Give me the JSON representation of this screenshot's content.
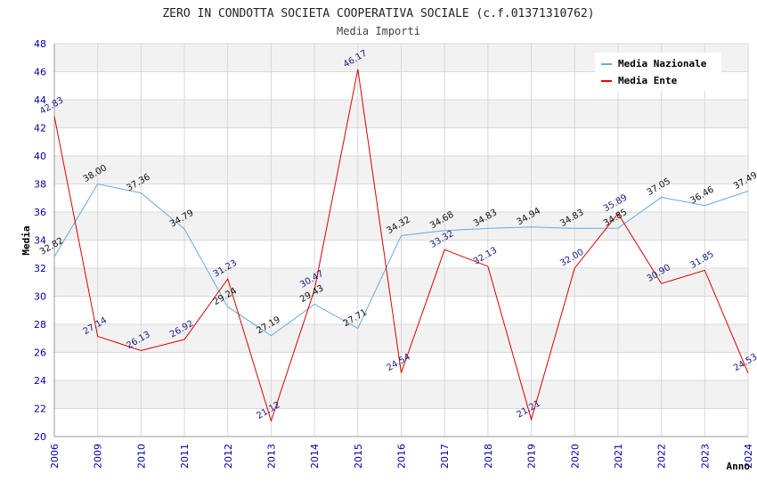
{
  "chart_data": {
    "type": "line",
    "title": "ZERO IN CONDOTTA SOCIETA COOPERATIVA SOCIALE (c.f.01371310762)",
    "subtitle": "Media Importi",
    "xlabel": "Anno",
    "ylabel": "Media",
    "ylim": [
      20,
      48
    ],
    "ytick_step": 2,
    "grid": true,
    "legend_position": "top-right",
    "categories": [
      "2006",
      "2009",
      "2010",
      "2011",
      "2012",
      "2013",
      "2014",
      "2015",
      "2016",
      "2017",
      "2018",
      "2019",
      "2020",
      "2021",
      "2022",
      "2023",
      "2024"
    ],
    "series": [
      {
        "name": "Media Nazionale",
        "color": "#66aadd",
        "values": [
          32.82,
          38.0,
          37.36,
          34.79,
          29.24,
          27.19,
          29.43,
          27.71,
          34.32,
          34.68,
          34.83,
          34.94,
          34.83,
          34.85,
          37.05,
          36.46,
          37.49
        ]
      },
      {
        "name": "Media Ente",
        "color": "#dd0000",
        "values": [
          42.83,
          27.14,
          26.13,
          26.92,
          31.23,
          21.12,
          30.47,
          46.17,
          24.54,
          33.32,
          32.13,
          21.21,
          32.0,
          35.89,
          30.9,
          31.85,
          24.53
        ]
      }
    ]
  }
}
